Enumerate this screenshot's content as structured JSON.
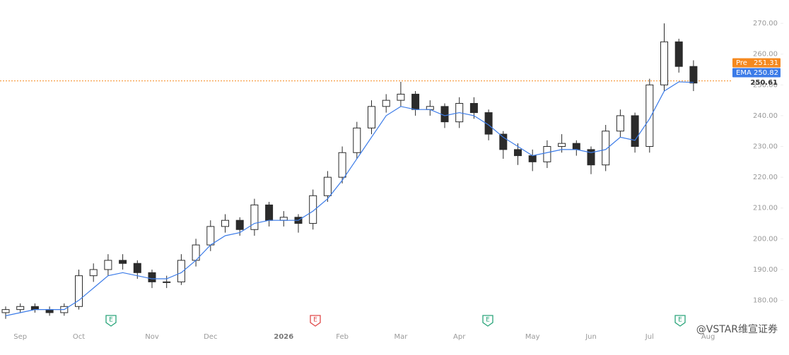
{
  "chart_data": {
    "type": "candlestick",
    "categories": [
      null,
      "Sep",
      null,
      null,
      null,
      "Oct",
      null,
      null,
      null,
      null,
      "Nov",
      null,
      null,
      null,
      "Dec",
      null,
      null,
      null,
      null,
      "2026",
      null,
      null,
      null,
      "Feb",
      null,
      null,
      null,
      "Mar",
      null,
      null,
      null,
      "Apr",
      null,
      null,
      null,
      null,
      "May",
      null,
      null,
      null,
      "Jun",
      null,
      null,
      null,
      "Jul",
      null,
      null,
      null,
      "Aug"
    ],
    "open": [
      176,
      177,
      178,
      177,
      176,
      178,
      188,
      190,
      193,
      192,
      189,
      186,
      186,
      193,
      198,
      204,
      206,
      203,
      211,
      206,
      207,
      205,
      214,
      220,
      228,
      236,
      243,
      245,
      247,
      242,
      243,
      238,
      244,
      241,
      234,
      229,
      227,
      225,
      230,
      231,
      229,
      224,
      235,
      240,
      230,
      250,
      264,
      256,
      null
    ],
    "high": [
      178,
      179,
      179,
      178,
      179,
      190,
      192,
      195,
      195,
      193,
      190,
      188,
      195,
      200,
      206,
      208,
      207,
      213,
      212,
      209,
      208,
      216,
      222,
      230,
      238,
      245,
      247,
      251,
      248,
      245,
      244,
      246,
      246,
      242,
      235,
      231,
      229,
      232,
      234,
      232,
      230,
      237,
      242,
      241,
      252,
      270,
      265,
      258,
      null
    ],
    "low": [
      174,
      176,
      176,
      175,
      175,
      177,
      186,
      188,
      190,
      187,
      184,
      184,
      185,
      191,
      196,
      202,
      201,
      201,
      204,
      204,
      202,
      203,
      212,
      218,
      226,
      234,
      241,
      243,
      240,
      240,
      236,
      236,
      239,
      232,
      226,
      224,
      222,
      223,
      228,
      227,
      221,
      222,
      233,
      228,
      228,
      248,
      254,
      248,
      null
    ],
    "close": [
      177,
      178,
      177,
      176,
      178,
      188,
      190,
      193,
      192,
      189,
      186,
      186,
      193,
      198,
      204,
      206,
      203,
      211,
      206,
      207,
      205,
      214,
      220,
      228,
      236,
      243,
      245,
      247,
      242,
      243,
      238,
      244,
      241,
      234,
      229,
      227,
      225,
      230,
      231,
      229,
      224,
      235,
      240,
      230,
      250,
      264,
      256,
      250.61,
      null
    ],
    "ema": {
      "name": "EMA",
      "color": "#3b7be8",
      "value": 250.82,
      "values": [
        175,
        176,
        177,
        177,
        177,
        180,
        184,
        188,
        189,
        188,
        187,
        187,
        189,
        193,
        198,
        201,
        202,
        205,
        206,
        206,
        206,
        209,
        213,
        219,
        226,
        233,
        240,
        243,
        242,
        242,
        240,
        241,
        240,
        237,
        233,
        230,
        227,
        228,
        229,
        229,
        228,
        229,
        233,
        232,
        239,
        248,
        251,
        250.8,
        null
      ]
    },
    "pre": {
      "name": "Pre",
      "value": 251.31,
      "color": "#f5891f"
    },
    "up_color": "#ffffff",
    "down_color": "#2b2b2b",
    "ylim": [
      172.1,
      275.3
    ],
    "yticks": [
      {
        "value": 180,
        "label": "180.00"
      },
      {
        "value": 190,
        "label": "190.00"
      },
      {
        "value": 200,
        "label": "200.00"
      },
      {
        "value": 210,
        "label": "210.00"
      },
      {
        "value": 220,
        "label": "220.00"
      },
      {
        "value": 230,
        "label": "230.00"
      },
      {
        "value": 240,
        "label": "240.00"
      },
      {
        "value": 250,
        "label": "250.00"
      },
      {
        "value": 260,
        "label": "260.00"
      },
      {
        "value": 270,
        "label": "270.00"
      }
    ],
    "watermark": "@VSTAR维宣证券"
  }
}
